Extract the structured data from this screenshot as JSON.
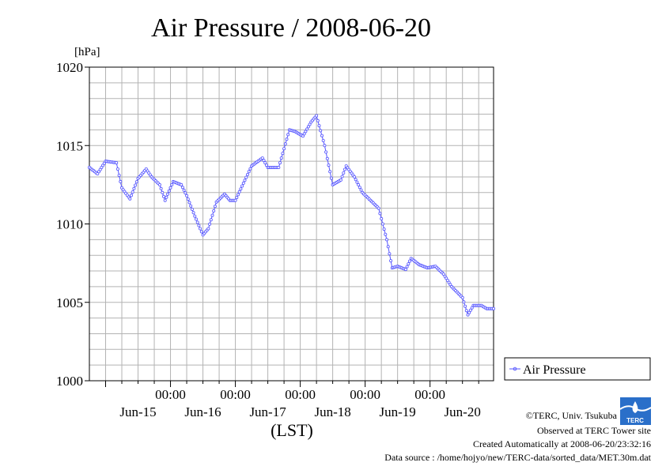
{
  "chart_data": {
    "type": "line",
    "title": "Air Pressure / 2008-06-20",
    "unit_label": "[hPa]",
    "xlabel": "(LST)",
    "ylabel": "",
    "ylim": [
      1000,
      1020
    ],
    "yticks": [
      1000,
      1005,
      1010,
      1015,
      1020
    ],
    "ytick_labels": [
      "1000",
      "1005",
      "1010",
      "1015",
      "1020"
    ],
    "xlim": [
      "2008-06-14T18:00",
      "2008-06-20T23:30"
    ],
    "x_time_ticks": [
      "2008-06-16T00:00",
      "2008-06-17T00:00",
      "2008-06-18T00:00",
      "2008-06-19T00:00",
      "2008-06-20T00:00"
    ],
    "x_time_labels": [
      "00:00",
      "00:00",
      "00:00",
      "00:00",
      "00:00"
    ],
    "x_day_labels": [
      "Jun-15",
      "Jun-16",
      "Jun-17",
      "Jun-18",
      "Jun-19",
      "Jun-20"
    ],
    "grid": true,
    "legend_position": "right",
    "series": [
      {
        "name": "Air Pressure",
        "color": "#5555ff",
        "x": [
          "2008-06-14T18:00",
          "2008-06-14T21:00",
          "2008-06-15T00:00",
          "2008-06-15T04:00",
          "2008-06-15T06:00",
          "2008-06-15T09:00",
          "2008-06-15T12:00",
          "2008-06-15T15:00",
          "2008-06-15T17:00",
          "2008-06-15T20:00",
          "2008-06-15T22:00",
          "2008-06-16T01:00",
          "2008-06-16T04:00",
          "2008-06-16T06:00",
          "2008-06-16T09:00",
          "2008-06-16T12:00",
          "2008-06-16T14:00",
          "2008-06-16T17:00",
          "2008-06-16T20:00",
          "2008-06-16T22:00",
          "2008-06-17T00:00",
          "2008-06-17T03:00",
          "2008-06-17T06:00",
          "2008-06-17T10:00",
          "2008-06-17T12:00",
          "2008-06-17T16:00",
          "2008-06-17T18:00",
          "2008-06-17T20:00",
          "2008-06-17T22:00",
          "2008-06-18T01:00",
          "2008-06-18T04:00",
          "2008-06-18T06:00",
          "2008-06-18T09:00",
          "2008-06-18T12:00",
          "2008-06-18T15:00",
          "2008-06-18T17:00",
          "2008-06-18T20:00",
          "2008-06-18T23:00",
          "2008-06-19T02:00",
          "2008-06-19T05:00",
          "2008-06-19T08:00",
          "2008-06-19T10:00",
          "2008-06-19T12:00",
          "2008-06-19T15:00",
          "2008-06-19T17:00",
          "2008-06-19T20:00",
          "2008-06-19T23:00",
          "2008-06-20T02:00",
          "2008-06-20T05:00",
          "2008-06-20T08:00",
          "2008-06-20T12:00",
          "2008-06-20T14:00",
          "2008-06-20T16:00",
          "2008-06-20T19:00",
          "2008-06-20T21:00",
          "2008-06-20T23:30"
        ],
        "y": [
          1013.6,
          1013.2,
          1014.0,
          1013.9,
          1012.3,
          1011.6,
          1012.9,
          1013.5,
          1013.0,
          1012.5,
          1011.5,
          1012.7,
          1012.5,
          1011.8,
          1010.5,
          1009.3,
          1009.7,
          1011.4,
          1011.9,
          1011.5,
          1011.5,
          1012.6,
          1013.7,
          1014.2,
          1013.6,
          1013.6,
          1014.8,
          1016.0,
          1015.9,
          1015.6,
          1016.5,
          1016.9,
          1015.0,
          1012.5,
          1012.8,
          1013.7,
          1013.0,
          1012.0,
          1011.5,
          1011.0,
          1009.0,
          1007.2,
          1007.3,
          1007.1,
          1007.8,
          1007.4,
          1007.2,
          1007.3,
          1006.8,
          1006.0,
          1005.3,
          1004.2,
          1004.8,
          1004.8,
          1004.6,
          1004.6
        ]
      }
    ]
  },
  "credits": {
    "copyright": "©TERC, Univ. Tsukuba",
    "observed": "Observed at TERC Tower site",
    "created": "Created Automatically at 2008-06-20/23:32:16",
    "source": "Data source : /home/hojyo/new/TERC-data/sorted_data/MET.30m.dat",
    "logo_text": "TERC"
  }
}
